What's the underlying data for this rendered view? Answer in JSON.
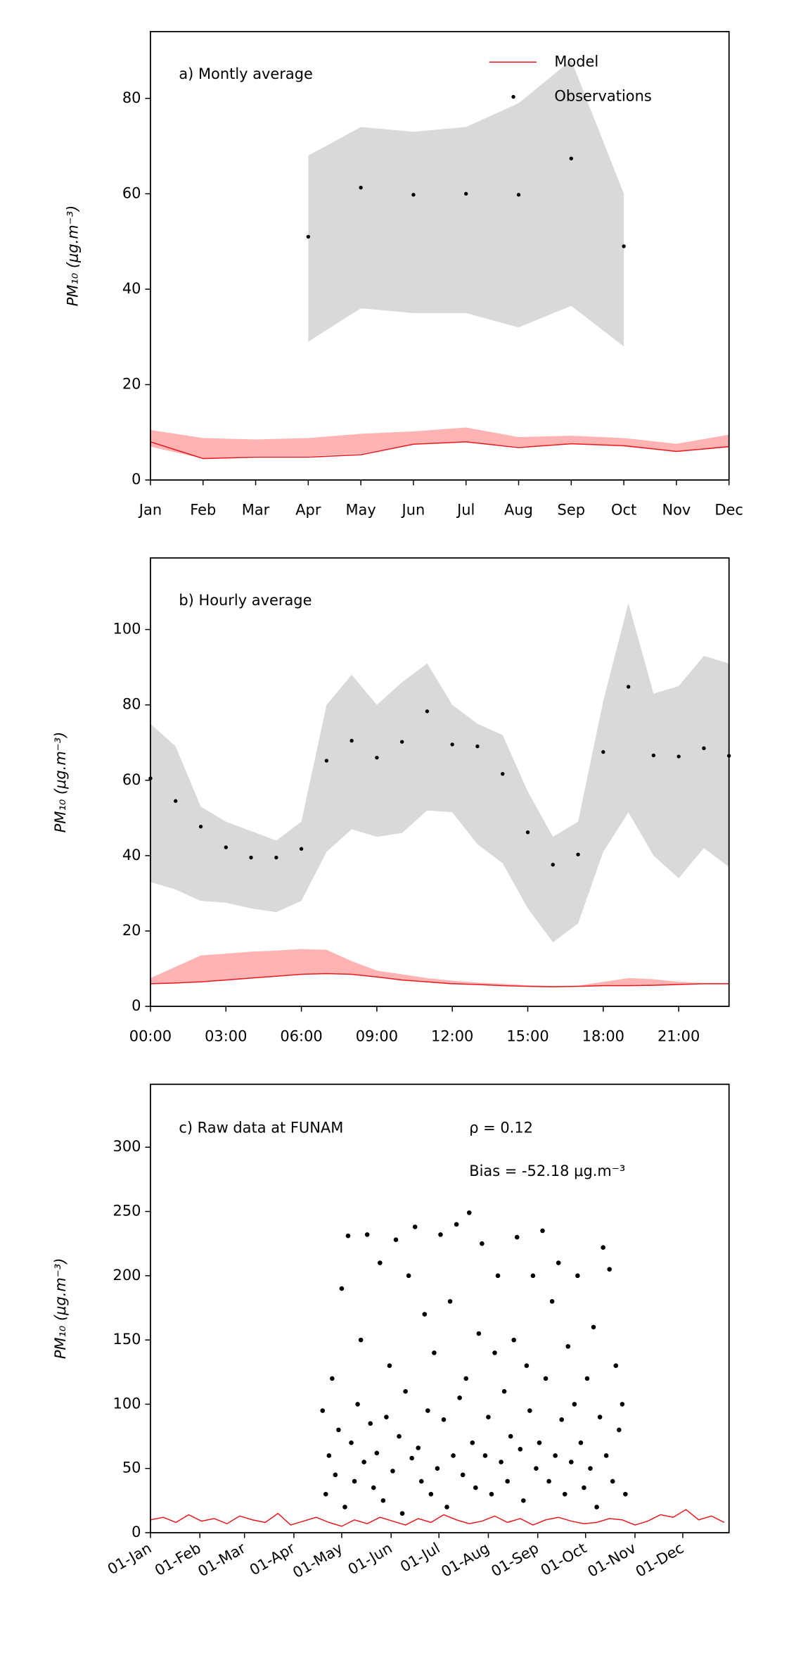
{
  "chart_data": [
    {
      "type": "line",
      "ylabel": "PM₁₀ (μg.m⁻³)",
      "annotations": [
        "a) Montly average"
      ],
      "legend": "upper right",
      "categories": [
        "Jan",
        "Feb",
        "Mar",
        "Apr",
        "May",
        "Jun",
        "Jul",
        "Aug",
        "Sep",
        "Oct",
        "Nov",
        "Dec"
      ],
      "xlim": [
        0,
        11
      ],
      "ylim": [
        0,
        94
      ],
      "yticks": [
        0,
        20,
        40,
        60,
        80
      ],
      "bands": [
        {
          "color": "#d9d9d9",
          "lower": [
            null,
            null,
            null,
            29,
            36,
            35,
            35,
            32,
            36.5,
            28,
            null,
            null
          ],
          "upper": [
            null,
            null,
            null,
            68,
            74,
            73,
            74,
            79,
            88,
            60,
            null,
            null
          ]
        },
        {
          "color": "#ffb3b3",
          "lower": [
            7,
            4.5,
            5,
            5,
            5.5,
            7.5,
            8,
            7,
            7.5,
            7,
            6,
            6.8
          ],
          "upper": [
            10.5,
            8.8,
            8.5,
            8.8,
            9.7,
            10.2,
            11,
            9,
            9.3,
            8.8,
            7.6,
            9.5
          ]
        }
      ],
      "series": [
        {
          "name": "Model",
          "kind": "line",
          "color": "#e8191e",
          "values": [
            8,
            4.5,
            4.8,
            4.8,
            5.3,
            7.5,
            8,
            6.8,
            7.6,
            7.2,
            6,
            7
          ]
        },
        {
          "name": "Observations",
          "kind": "points",
          "color": "#000000",
          "values": [
            null,
            null,
            null,
            51,
            61.3,
            59.8,
            60,
            59.8,
            67.4,
            49,
            null,
            null
          ]
        }
      ]
    },
    {
      "type": "line",
      "ylabel": "PM₁₀ (μg.m⁻³)",
      "annotations": [
        "b) Hourly average"
      ],
      "x": [
        0,
        1,
        2,
        3,
        4,
        5,
        6,
        7,
        8,
        9,
        10,
        11,
        12,
        13,
        14,
        15,
        16,
        17,
        18,
        19,
        20,
        21,
        22,
        23
      ],
      "xlim": [
        0,
        23
      ],
      "xticks": [
        {
          "value": 0,
          "label": "00:00"
        },
        {
          "value": 3,
          "label": "03:00"
        },
        {
          "value": 6,
          "label": "06:00"
        },
        {
          "value": 9,
          "label": "09:00"
        },
        {
          "value": 12,
          "label": "12:00"
        },
        {
          "value": 15,
          "label": "15:00"
        },
        {
          "value": 18,
          "label": "18:00"
        },
        {
          "value": 21,
          "label": "21:00"
        }
      ],
      "ylim": [
        0,
        119
      ],
      "yticks": [
        0,
        20,
        40,
        60,
        80,
        100
      ],
      "bands": [
        {
          "color": "#d9d9d9",
          "lower": [
            33,
            31,
            28,
            27.5,
            26,
            25,
            28,
            41,
            47,
            45,
            46,
            52,
            51.5,
            43,
            38,
            26,
            17,
            22,
            41,
            51.5,
            40,
            34,
            42,
            37
          ],
          "upper": [
            75,
            69,
            53,
            49,
            46.5,
            44,
            49,
            80,
            88,
            80,
            86,
            91,
            80,
            75,
            72,
            57,
            45,
            49,
            81,
            107,
            83,
            85,
            93,
            91
          ]
        },
        {
          "color": "#ffb3b3",
          "lower": [
            6,
            6.2,
            6.5,
            7,
            7.5,
            8,
            8.5,
            8.7,
            8.5,
            7.8,
            7,
            6.5,
            6,
            5.8,
            5.5,
            5.3,
            5.2,
            5.3,
            5.5,
            5.5,
            5.6,
            5.8,
            6,
            6
          ],
          "upper": [
            7.5,
            10.5,
            13.5,
            14,
            14.5,
            14.8,
            15.2,
            15,
            12,
            9.5,
            8.5,
            7.5,
            6.8,
            6.3,
            6,
            5.6,
            5.4,
            5.5,
            6.5,
            7.5,
            7.2,
            6.5,
            6.2,
            6.2
          ]
        }
      ],
      "series": [
        {
          "kind": "line",
          "color": "#e8191e",
          "values": [
            6,
            6.2,
            6.5,
            7,
            7.5,
            8,
            8.5,
            8.7,
            8.5,
            7.8,
            7,
            6.5,
            6,
            5.8,
            5.5,
            5.3,
            5.2,
            5.3,
            5.5,
            5.5,
            5.6,
            5.8,
            6,
            6
          ]
        },
        {
          "kind": "points",
          "color": "#000000",
          "values": [
            60.5,
            54.5,
            47.7,
            42.2,
            39.5,
            39.5,
            41.8,
            65.2,
            70.5,
            66,
            70.2,
            78.3,
            69.5,
            69,
            61.7,
            46.2,
            37.6,
            40.3,
            67.5,
            84.8,
            66.6,
            66.3,
            68.5,
            66.5
          ]
        }
      ]
    },
    {
      "type": "scatter",
      "ylabel": "PM₁₀ (μg.m⁻³)",
      "annotations": [
        "c) Raw data at FUNAM",
        "ρ = 0.12",
        "Bias = -52.18 μg.m⁻³"
      ],
      "xlim": [
        0,
        363
      ],
      "xticks": [
        {
          "value": 0,
          "label": "01-Jan"
        },
        {
          "value": 31,
          "label": "01-Feb"
        },
        {
          "value": 59,
          "label": "01-Mar"
        },
        {
          "value": 90,
          "label": "01-Apr"
        },
        {
          "value": 120,
          "label": "01-May"
        },
        {
          "value": 151,
          "label": "01-Jun"
        },
        {
          "value": 181,
          "label": "01-Jul"
        },
        {
          "value": 212,
          "label": "01-Aug"
        },
        {
          "value": 243,
          "label": "01-Sep"
        },
        {
          "value": 273,
          "label": "01-Oct"
        },
        {
          "value": 304,
          "label": "01-Nov"
        },
        {
          "value": 334,
          "label": "01-Dec"
        }
      ],
      "ylim": [
        0,
        349
      ],
      "yticks": [
        0,
        50,
        100,
        150,
        200,
        250,
        300
      ],
      "series": [
        {
          "kind": "points",
          "color": "#000000",
          "x": [
            108,
            110,
            112,
            114,
            116,
            118,
            120,
            122,
            124,
            126,
            128,
            130,
            132,
            134,
            136,
            138,
            140,
            142,
            144,
            146,
            148,
            150,
            152,
            154,
            156,
            158,
            160,
            162,
            164,
            166,
            168,
            170,
            172,
            174,
            176,
            178,
            180,
            182,
            184,
            186,
            188,
            190,
            192,
            194,
            196,
            198,
            200,
            202,
            204,
            206,
            208,
            210,
            212,
            214,
            216,
            218,
            220,
            222,
            224,
            226,
            228,
            230,
            232,
            234,
            236,
            238,
            240,
            242,
            244,
            246,
            248,
            250,
            252,
            254,
            256,
            258,
            260,
            262,
            264,
            266,
            268,
            270,
            272,
            274,
            276,
            278,
            280,
            282,
            284,
            286,
            288,
            290,
            292,
            294,
            296,
            298
          ],
          "values": [
            95,
            30,
            60,
            120,
            45,
            80,
            190,
            20,
            231,
            70,
            40,
            100,
            150,
            55,
            232,
            85,
            35,
            62,
            210,
            25,
            90,
            130,
            48,
            228,
            75,
            15,
            110,
            200,
            58,
            238,
            66,
            40,
            170,
            95,
            30,
            140,
            50,
            232,
            88,
            20,
            180,
            60,
            240,
            105,
            45,
            120,
            249,
            70,
            35,
            155,
            225,
            60,
            90,
            30,
            140,
            200,
            55,
            110,
            40,
            75,
            150,
            230,
            65,
            25,
            130,
            95,
            200,
            50,
            70,
            235,
            120,
            40,
            180,
            60,
            210,
            88,
            30,
            145,
            55,
            100,
            200,
            70,
            35,
            120,
            50,
            160,
            20,
            90,
            222,
            60,
            205,
            40,
            130,
            80,
            100,
            30
          ]
        },
        {
          "kind": "line",
          "color": "#e8191e",
          "x": [
            0,
            8,
            16,
            24,
            32,
            40,
            48,
            56,
            64,
            72,
            80,
            88,
            96,
            104,
            112,
            120,
            128,
            136,
            144,
            152,
            160,
            168,
            176,
            184,
            192,
            200,
            208,
            216,
            224,
            232,
            240,
            248,
            256,
            264,
            272,
            280,
            288,
            296,
            304,
            312,
            320,
            328,
            336,
            344,
            352,
            360
          ],
          "values": [
            10,
            12,
            8,
            14,
            9,
            11,
            7,
            13,
            10,
            8,
            15,
            6,
            9,
            12,
            8,
            5,
            10,
            7,
            12,
            9,
            6,
            11,
            8,
            14,
            10,
            7,
            9,
            13,
            8,
            11,
            6,
            10,
            12,
            9,
            7,
            8,
            11,
            10,
            6,
            9,
            14,
            12,
            18,
            10,
            13,
            8
          ]
        }
      ]
    }
  ]
}
